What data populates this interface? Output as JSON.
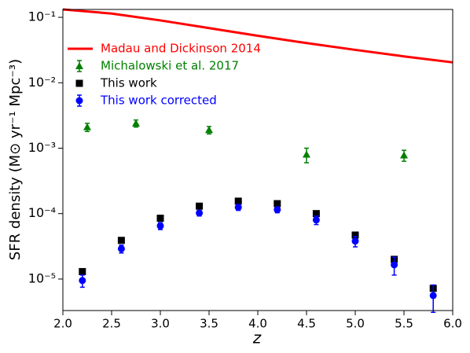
{
  "chart_data": {
    "type": "scatter",
    "x_label": "z",
    "y_label": "SFR density (M⊙ yr⁻¹ Mpc⁻³)",
    "log_y": true,
    "legend": "upper left",
    "xlim": [
      2,
      6
    ],
    "ylim": [
      3.3e-06,
      0.132
    ],
    "xticks": [
      {
        "value": 2,
        "label": "2.0"
      },
      {
        "value": 2.5,
        "label": "2.5"
      },
      {
        "value": 3,
        "label": "3.0"
      },
      {
        "value": 3.5,
        "label": "3.5"
      },
      {
        "value": 4,
        "label": "4.0"
      },
      {
        "value": 4.5,
        "label": "4.5"
      },
      {
        "value": 5,
        "label": "5.0"
      },
      {
        "value": 5.5,
        "label": "5.5"
      },
      {
        "value": 6,
        "label": "6.0"
      }
    ],
    "yticks": [
      {
        "value": 1e-05,
        "label": "10⁻⁵"
      },
      {
        "value": 0.0001,
        "label": "10⁻⁴"
      },
      {
        "value": 0.001,
        "label": "10⁻³"
      },
      {
        "value": 0.01,
        "label": "10⁻²"
      },
      {
        "value": 0.1,
        "label": "10⁻¹"
      }
    ],
    "series": [
      {
        "name": "Madau and Dickinson 2014",
        "color": "#ff0000",
        "marker": "line",
        "x": [
          2,
          2.5,
          3,
          3.5,
          4,
          4.5,
          5,
          5.5,
          6
        ],
        "values": [
          0.132,
          0.1142,
          0.0898,
          0.0685,
          0.0523,
          0.0404,
          0.0318,
          0.0253,
          0.0205
        ]
      },
      {
        "name": "Michalowski et al. 2017",
        "color": "#008000",
        "marker": "triangle",
        "x": [
          2.25,
          2.75,
          3.5,
          4.5,
          5.5
        ],
        "values": [
          0.0021,
          0.0024,
          0.0019,
          0.0008,
          0.00078
        ],
        "errors": [
          0.0003,
          0.0003,
          0.00025,
          0.0002,
          0.00015
        ]
      },
      {
        "name": "This work",
        "color": "#000000",
        "marker": "square",
        "x": [
          2.2,
          2.6,
          3.0,
          3.4,
          3.8,
          4.2,
          4.6,
          5.0,
          5.4,
          5.8
        ],
        "values": [
          1.3e-05,
          3.9e-05,
          8.5e-05,
          0.00013,
          0.000155,
          0.000142,
          0.0001,
          4.7e-05,
          2e-05,
          7.2e-06
        ]
      },
      {
        "name": "This work corrected",
        "color": "#0000ff",
        "marker": "circle",
        "x": [
          2.2,
          2.6,
          3.0,
          3.4,
          3.8,
          4.2,
          4.6,
          5.0,
          5.4,
          5.8
        ],
        "values": [
          9.5e-06,
          2.9e-05,
          6.5e-05,
          0.000102,
          0.000125,
          0.000115,
          8e-05,
          3.8e-05,
          1.65e-05,
          5.6e-06
        ],
        "errors": [
          2e-06,
          4e-06,
          8e-06,
          1e-05,
          1.3e-05,
          1.2e-05,
          1.2e-05,
          7e-06,
          5e-06,
          2.5e-06
        ]
      }
    ]
  }
}
